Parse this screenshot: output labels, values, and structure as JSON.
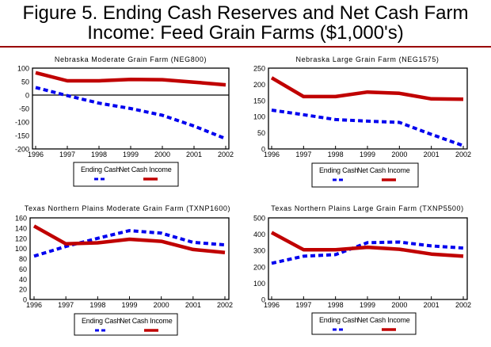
{
  "figure": {
    "title_line1": "Figure 5. Ending Cash Reserves and Net Cash Farm",
    "title_line2": "Income:  Feed Grain Farms ($1,000's)",
    "colors": {
      "rule": "#990000",
      "ending_cash": "#0000ee",
      "net_cash_income": "#c00000"
    }
  },
  "chart_data": [
    {
      "type": "line",
      "title": "Nebraska Moderate Grain Farm (NEG800)",
      "x": [
        1996,
        1997,
        1998,
        1999,
        2000,
        2001,
        2002
      ],
      "xticks": [
        "1996",
        "1997",
        "1998",
        "1999",
        "2000",
        "2001",
        "2002"
      ],
      "ylim": [
        -200,
        100
      ],
      "yticks": [
        -200,
        -150,
        -100,
        -50,
        0,
        50,
        100
      ],
      "zero_line": true,
      "grid": false,
      "legend_position": "bottom",
      "series": [
        {
          "name": "Ending Cash",
          "style": "dashed",
          "values": [
            28,
            -2,
            -30,
            -50,
            -75,
            -115,
            -162
          ]
        },
        {
          "name": "Net Cash Income",
          "style": "solid",
          "values": [
            83,
            53,
            53,
            58,
            57,
            48,
            38
          ]
        }
      ]
    },
    {
      "type": "line",
      "title": "Nebraska Large Grain Farm (NEG1575)",
      "x": [
        1996,
        1997,
        1998,
        1999,
        2000,
        2001,
        2002
      ],
      "xticks": [
        "1996",
        "1997",
        "1998",
        "1999",
        "2000",
        "2001",
        "2002"
      ],
      "ylim": [
        0,
        250
      ],
      "yticks": [
        0,
        50,
        100,
        150,
        200,
        250
      ],
      "zero_line": false,
      "grid": false,
      "legend_position": "bottom",
      "series": [
        {
          "name": "Ending Cash",
          "style": "dashed",
          "values": [
            120,
            106,
            91,
            86,
            82,
            45,
            10
          ]
        },
        {
          "name": "Net Cash Income",
          "style": "solid",
          "values": [
            220,
            162,
            162,
            176,
            172,
            155,
            154
          ]
        }
      ]
    },
    {
      "type": "line",
      "title": "Texas Northern Plains Moderate Grain Farm (TXNP1600)",
      "x": [
        1996,
        1997,
        1998,
        1999,
        2000,
        2001,
        2002
      ],
      "xticks": [
        "1996",
        "1997",
        "1998",
        "1999",
        "2000",
        "2001",
        "2002"
      ],
      "ylim": [
        0,
        160
      ],
      "yticks": [
        0,
        20,
        40,
        60,
        80,
        100,
        120,
        140,
        160
      ],
      "zero_line": false,
      "grid": false,
      "legend_position": "bottom",
      "series": [
        {
          "name": "Ending Cash",
          "style": "dashed",
          "values": [
            85,
            104,
            120,
            135,
            130,
            112,
            107
          ]
        },
        {
          "name": "Net Cash Income",
          "style": "solid",
          "values": [
            144,
            109,
            111,
            118,
            114,
            98,
            92
          ]
        }
      ]
    },
    {
      "type": "line",
      "title": "Texas Northern Plains Large Grain Farm (TXNP5500)",
      "x": [
        1996,
        1997,
        1998,
        1999,
        2000,
        2001,
        2002
      ],
      "xticks": [
        "1996",
        "1997",
        "1998",
        "1999",
        "2000",
        "2001",
        "2002"
      ],
      "ylim": [
        0,
        500
      ],
      "yticks": [
        0,
        100,
        200,
        300,
        400,
        500
      ],
      "zero_line": false,
      "grid": false,
      "legend_position": "bottom",
      "series": [
        {
          "name": "Ending Cash",
          "style": "dashed",
          "values": [
            222,
            265,
            275,
            348,
            352,
            328,
            315
          ]
        },
        {
          "name": "Net Cash Income",
          "style": "solid",
          "values": [
            410,
            305,
            305,
            320,
            308,
            278,
            265
          ]
        }
      ]
    }
  ]
}
